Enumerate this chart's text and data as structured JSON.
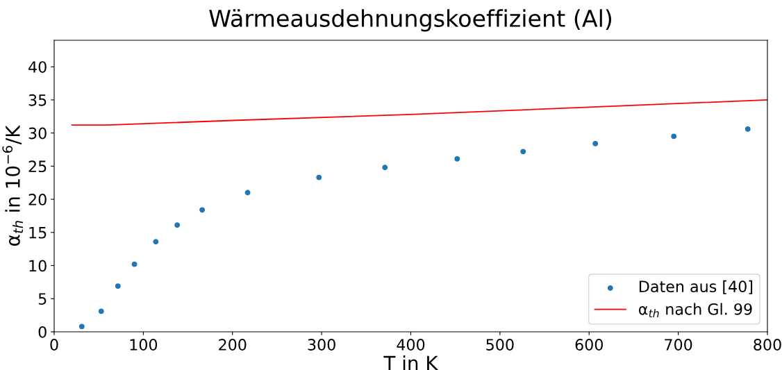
{
  "chart_data": {
    "type": "scatter",
    "title": "Wärmeausdehnungskoeffizient (Al)",
    "xlabel": "T in K",
    "ylabel": "α$_{th}$ in 10$^{−6}$/K",
    "series": [
      {
        "name": "Daten aus [40]",
        "color": "#1f77b4",
        "marker": "circle",
        "x": [
          31,
          52.8,
          71.5,
          90,
          114,
          138,
          166,
          217,
          297,
          371,
          452,
          526,
          607,
          695,
          778
        ],
        "values": [
          0.8,
          3.1,
          6.9,
          10.2,
          13.6,
          16.1,
          18.4,
          21.0,
          23.3,
          24.8,
          26.1,
          27.2,
          28.4,
          29.5,
          30.6
        ]
      },
      {
        "name": "α$_{th}$ nach Gl. 99",
        "color": "#ff0000",
        "type": "line",
        "marker": "none",
        "x": [
          20,
          60,
          200,
          400,
          600,
          800
        ],
        "values": [
          31.2,
          31.2,
          31.9,
          32.8,
          33.9,
          35.0
        ]
      }
    ],
    "xlim": [
      0,
      800
    ],
    "ylim": [
      0,
      44
    ],
    "xticks": [
      0,
      100,
      200,
      300,
      400,
      500,
      600,
      700,
      800
    ],
    "yticks": [
      0,
      5,
      10,
      15,
      20,
      25,
      30,
      35,
      40
    ],
    "grid": false,
    "legend": "bottom right"
  }
}
